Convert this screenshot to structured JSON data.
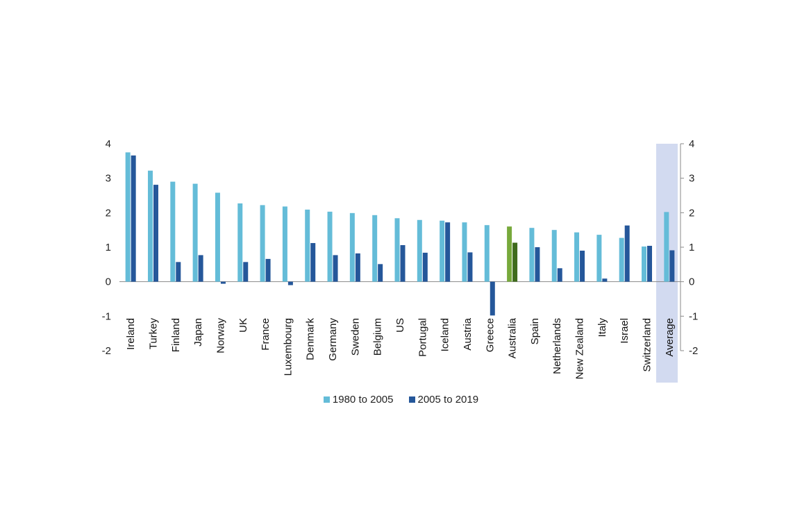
{
  "colors": {
    "series1": "#64bcd8",
    "series2": "#25579a",
    "highlight1": "#77a93b",
    "highlight2": "#3f6b1d",
    "average_band": "#d2daf0"
  },
  "chart_data": {
    "type": "bar",
    "categories": [
      "Ireland",
      "Turkey",
      "Finland",
      "Japan",
      "Norway",
      "UK",
      "France",
      "Luxembourg",
      "Denmark",
      "Germany",
      "Sweden",
      "Belgium",
      "US",
      "Portugal",
      "Iceland",
      "Austria",
      "Greece",
      "Australia",
      "Spain",
      "Netherlands",
      "New Zealand",
      "Italy",
      "Israel",
      "Switzerland",
      "Average"
    ],
    "series": [
      {
        "name": "1980 to 2005",
        "values": [
          3.75,
          3.22,
          2.9,
          2.84,
          2.58,
          2.27,
          2.22,
          2.18,
          2.09,
          2.03,
          1.99,
          1.93,
          1.84,
          1.79,
          1.77,
          1.72,
          1.64,
          1.6,
          1.56,
          1.5,
          1.43,
          1.36,
          1.27,
          1.02,
          2.02
        ]
      },
      {
        "name": "2005 to 2019",
        "values": [
          3.66,
          2.81,
          0.57,
          0.77,
          -0.06,
          0.57,
          0.66,
          -0.1,
          1.12,
          0.77,
          0.82,
          0.51,
          1.06,
          0.84,
          1.72,
          0.85,
          -0.98,
          1.13,
          1.0,
          0.39,
          0.9,
          0.09,
          1.63,
          1.04,
          0.91
        ]
      }
    ],
    "highlight_category": "Australia",
    "shaded_category": "Average",
    "ylim": [
      -2,
      4
    ],
    "yticks": [
      "4",
      "3",
      "2",
      "1",
      "0",
      "-1",
      "-2"
    ],
    "secondary_yticks": [
      "4",
      "3",
      "2",
      "1",
      "0",
      "-1",
      "-2"
    ],
    "legend_position": "bottom",
    "grid": false
  }
}
